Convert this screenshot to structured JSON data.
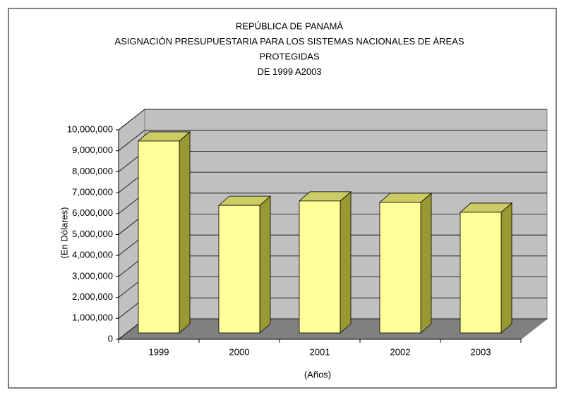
{
  "chart_data": {
    "type": "bar",
    "title": [
      "REPÚBLICA DE PANAMÁ",
      "ASIGNACIÓN PRESUPUESTARIA PARA LOS SISTEMAS NACIONALES DE ÁREAS",
      "PROTEGIDAS",
      "DE 1999 A2003"
    ],
    "y_label": "(En Dólares)",
    "x_label": "(Años)",
    "categories": [
      "1999",
      "2000",
      "2001",
      "2002",
      "2003"
    ],
    "values": [
      9160000,
      6090000,
      6300000,
      6230000,
      5760000
    ],
    "color": "#ffff99",
    "ylim": [
      0,
      10000000
    ],
    "yticks": [
      {
        "value": 0,
        "label": "0"
      },
      {
        "value": 1000000,
        "label": "1,000,000"
      },
      {
        "value": 2000000,
        "label": "2,000,000"
      },
      {
        "value": 3000000,
        "label": "3,000,000"
      },
      {
        "value": 4000000,
        "label": "4,000,000"
      },
      {
        "value": 5000000,
        "label": "5,000,000"
      },
      {
        "value": 6000000,
        "label": "6,000,000"
      },
      {
        "value": 7000000,
        "label": "7,000,000"
      },
      {
        "value": 8000000,
        "label": "8,000,000"
      },
      {
        "value": 9000000,
        "label": "9,000,000"
      },
      {
        "value": 10000000,
        "label": "10,000,000"
      }
    ],
    "grid": true
  }
}
